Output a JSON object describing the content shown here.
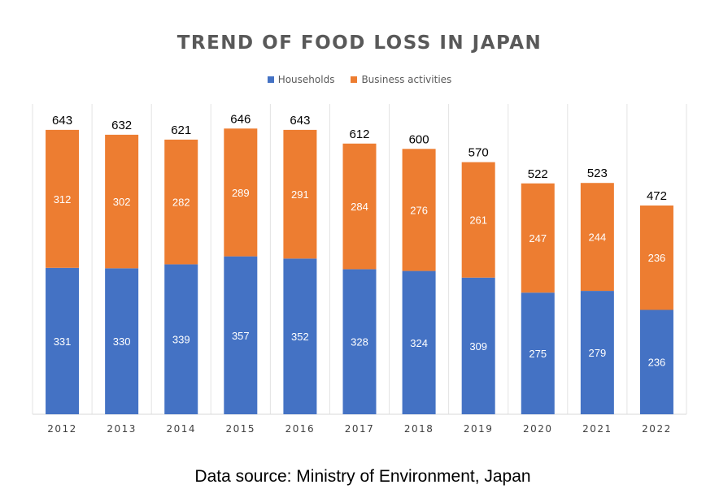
{
  "chart_data": {
    "type": "bar",
    "stacked": true,
    "title": "TREND OF FOOD LOSS IN JAPAN",
    "categories": [
      "2012",
      "2013",
      "2014",
      "2015",
      "2016",
      "2017",
      "2018",
      "2019",
      "2020",
      "2021",
      "2022"
    ],
    "series": [
      {
        "name": "Households",
        "color": "#4472c4",
        "values": [
          331,
          330,
          339,
          357,
          352,
          328,
          324,
          309,
          275,
          279,
          236
        ]
      },
      {
        "name": "Business activities",
        "color": "#ed7d31",
        "values": [
          312,
          302,
          282,
          289,
          291,
          284,
          276,
          261,
          247,
          244,
          236
        ]
      }
    ],
    "totals": [
      643,
      632,
      621,
      646,
      643,
      612,
      600,
      570,
      522,
      523,
      472
    ],
    "legend_position": "top",
    "grid": false,
    "ylim": [
      0,
      700
    ]
  },
  "source_text": "Data source: Ministry of Environment, Japan"
}
